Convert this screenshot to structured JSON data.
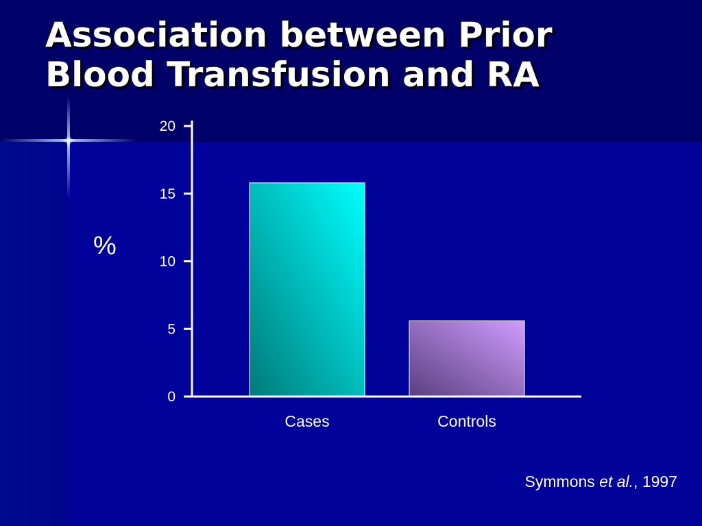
{
  "slide": {
    "title_line1": "Association between Prior",
    "title_line2": "Blood Transfusion and RA",
    "citation_author": "Symmons ",
    "citation_etal": "et al.",
    "citation_year": ", 1997"
  },
  "chart_data": {
    "type": "bar",
    "categories": [
      "Cases",
      "Controls"
    ],
    "values": [
      15.8,
      5.6
    ],
    "ylabel": "%",
    "xlabel": "",
    "ylim": [
      0,
      20
    ],
    "yticks": [
      0,
      5,
      10,
      15,
      20
    ],
    "grid": false,
    "bar_colors": [
      {
        "light": "#00ffff",
        "dark": "#007a78"
      },
      {
        "light": "#cf9cff",
        "dark": "#5a3f7e"
      }
    ],
    "axis_color": "#ffffff"
  }
}
